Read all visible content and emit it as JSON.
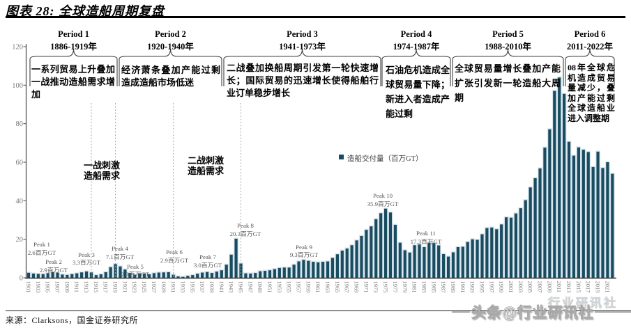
{
  "title": "图表 28: 全球造船周期复盘",
  "source": "来源：Clarksons，国金证券研究所",
  "legend": {
    "label": "造船交付量（百万GT）",
    "color": "#1A4C60"
  },
  "watermark": {
    "main": "头条@行业研讯社",
    "faint": "行业研讯社"
  },
  "periods": [
    {
      "name": "Period 1",
      "years": "1886-1919年",
      "desc": "一系列贸易上升叠加一战推动造船需求增加"
    },
    {
      "name": "Period 2",
      "years": "1920-1940年",
      "desc": "经济萧条叠加产能过剩造成造船市场低迷"
    },
    {
      "name": "Period 3",
      "years": "1941-1973年",
      "desc": "二战叠加换船周期引发第一轮快速增长；国际贸易的迅速增长使得船舶行业订单稳步增长"
    },
    {
      "name": "Period 4",
      "years": "1974-1987年",
      "desc": "石油危机造成全球贸易量下降；新进入者造成产能过剩"
    },
    {
      "name": "Period 5",
      "years": "1988-2010年",
      "desc": "全球贸易量增长叠加产能扩张引发新一轮造船大周期"
    },
    {
      "name": "Period 6",
      "years": "2011-2022年",
      "desc": "08年全球危机造成贸易量减少，叠加产能过剩全球造船业进入调整期"
    }
  ],
  "annotations": [
    {
      "lines": [
        "一战刺激",
        "造船需求"
      ]
    },
    {
      "lines": [
        "二战刺激",
        "造船需求"
      ]
    }
  ],
  "event_line_years": [
    1914,
    1919,
    1931,
    1945
  ],
  "peaks": [
    {
      "label": "Peak 1",
      "value_label": "2.6百万GT",
      "year": 1901,
      "value": 2.6
    },
    {
      "label": "Peak 2",
      "value_label": "2.9百万GT",
      "year": 1906,
      "value": 2.9
    },
    {
      "label": "Peak 3",
      "value_label": "3.3百万GT",
      "year": 1913,
      "value": 3.3
    },
    {
      "label": "Peak 4",
      "value_label": "7.1百万GT",
      "year": 1919,
      "value": 7.1
    },
    {
      "label": "Peak 5",
      "value_label": "2.3百万GT",
      "year": 1924,
      "value": 2.3
    },
    {
      "label": "Peak 6",
      "value_label": "2.9百万GT",
      "year": 1930,
      "value": 2.9
    },
    {
      "label": "Peak 7",
      "value_label": "3.0百万GT",
      "year": 1938,
      "value": 3.0
    },
    {
      "label": "Peak 8",
      "value_label": "20.3百万GT",
      "year": 1944,
      "value": 20.3
    },
    {
      "label": "Peak 9",
      "value_label": "9.3百万GT",
      "year": 1958,
      "value": 9.3
    },
    {
      "label": "Peak 10",
      "value_label": "35.9百万GT",
      "year": 1975,
      "value": 35.9
    },
    {
      "label": "Peak 11",
      "value_label": "17.3百万GT",
      "year": 1982,
      "value": 17.3
    }
  ],
  "chart_data": {
    "type": "bar",
    "title": "全球造船周期复盘",
    "ylabel": "造船交付量（百万GT）",
    "ylim": [
      0,
      120
    ],
    "yticks": [
      0,
      20,
      40,
      60,
      80,
      100,
      120
    ],
    "x_start": 1901,
    "x_end": 2022,
    "xtick_interval": 2,
    "bar_color": "#1A4C60",
    "grid": false,
    "legend_position": "center",
    "values": [
      2.6,
      2.2,
      2.0,
      1.9,
      2.4,
      2.9,
      2.6,
      1.7,
      1.5,
      1.9,
      2.3,
      2.8,
      3.3,
      2.8,
      1.4,
      1.8,
      2.9,
      5.5,
      7.1,
      5.9,
      4.3,
      2.5,
      1.6,
      2.3,
      2.2,
      1.8,
      2.4,
      2.7,
      2.8,
      2.9,
      1.6,
      0.7,
      0.5,
      1.0,
      1.4,
      2.1,
      2.7,
      3.0,
      2.5,
      3.2,
      3.9,
      6.8,
      12.0,
      20.3,
      7.4,
      2.3,
      2.2,
      2.5,
      3.4,
      3.6,
      3.9,
      4.5,
      5.1,
      5.3,
      5.3,
      6.8,
      8.5,
      9.3,
      8.8,
      8.3,
      8.0,
      8.3,
      8.5,
      10.3,
      12.2,
      14.1,
      15.2,
      16.9,
      19.4,
      21.7,
      24.9,
      26.7,
      30.4,
      33.5,
      35.9,
      33.9,
      27.5,
      18.2,
      14.3,
      13.1,
      16.9,
      17.3,
      15.9,
      18.2,
      18.0,
      16.8,
      12.3,
      11.0,
      13.2,
      15.9,
      16.1,
      18.6,
      20.0,
      19.7,
      22.6,
      25.8,
      26.1,
      25.2,
      27.7,
      31.4,
      31.2,
      33.4,
      36.1,
      40.3,
      46.9,
      51.7,
      56.8,
      67.6,
      77.1,
      97.0,
      104.0,
      95.5,
      70.6,
      63.4,
      67.7,
      66.5,
      65.3,
      57.5,
      65.5,
      57.0,
      60.0,
      54.0
    ]
  }
}
